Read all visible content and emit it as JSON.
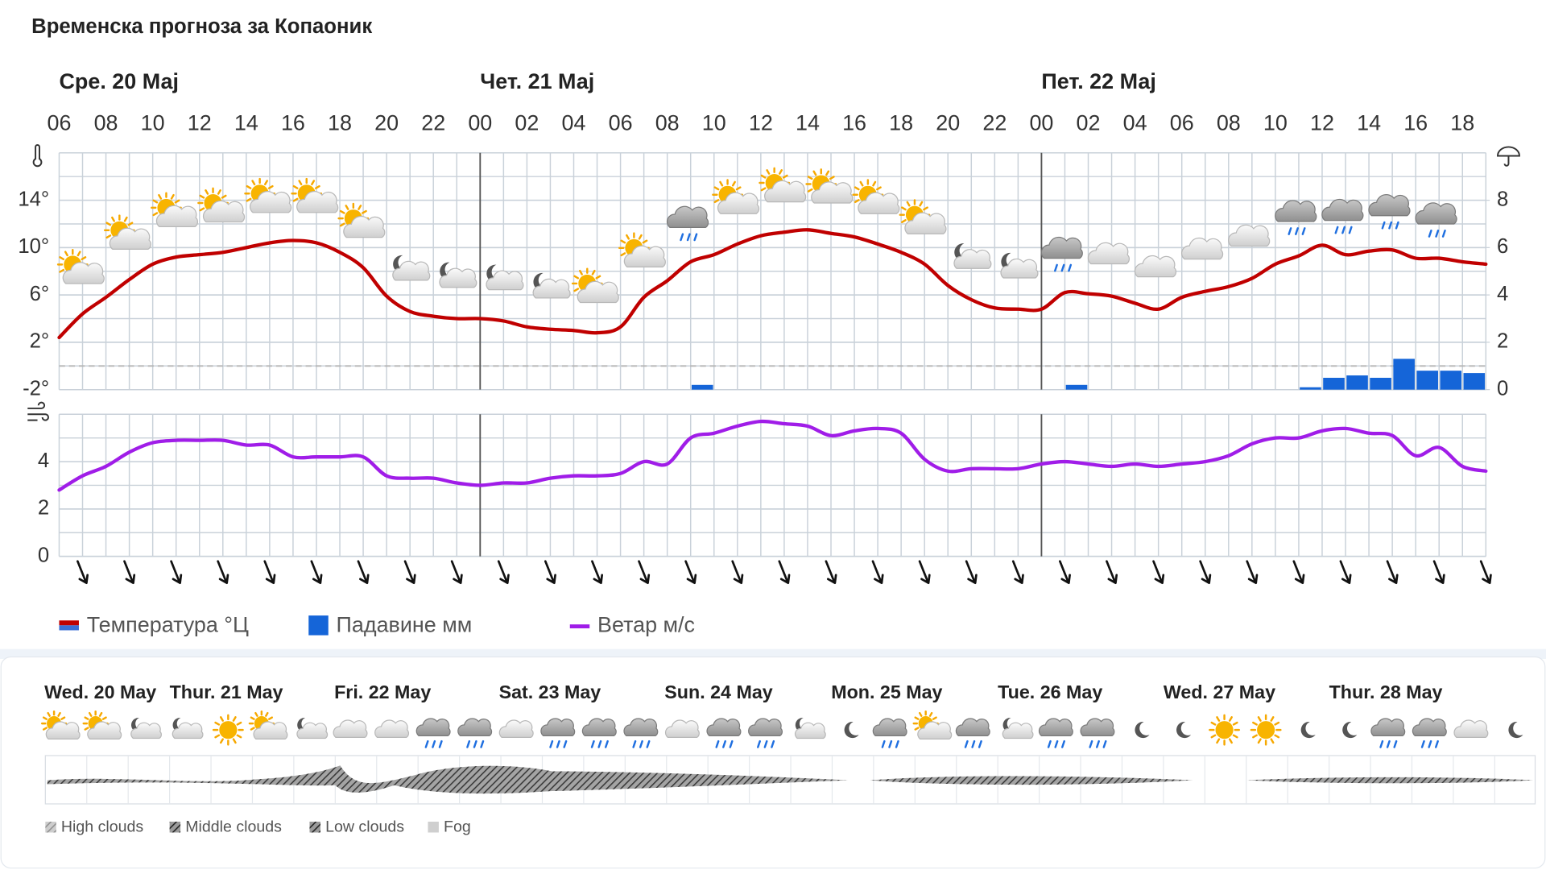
{
  "title": "Временска прогноза за Копаоник",
  "chart_data": [
    {
      "type": "line",
      "day_labels": [
        "Сре. 20 Мај",
        "Чет. 21 Мај",
        "Пет. 22 Мај"
      ],
      "categories": [
        "06",
        null,
        "08",
        null,
        "10",
        null,
        "12",
        null,
        "14",
        null,
        "16",
        null,
        "18",
        null,
        "20",
        null,
        "22",
        null,
        "00",
        null,
        "02",
        null,
        "04",
        null,
        "06",
        null,
        "08",
        null,
        "10",
        null,
        "12",
        null,
        "14",
        null,
        "16",
        null,
        "18",
        null,
        "20",
        null,
        "22",
        null,
        "00",
        null,
        "02",
        null,
        "04",
        null,
        "06",
        null,
        "08",
        null,
        "10",
        null,
        "12",
        null,
        "14",
        null,
        "16",
        null,
        "18",
        null
      ],
      "series": [
        {
          "name": "Температура °Ц",
          "color": "#c00000",
          "values": [
            2.4,
            4.4,
            5.8,
            7.3,
            8.6,
            9.2,
            9.4,
            9.6,
            10.0,
            10.4,
            10.6,
            10.4,
            9.6,
            8.3,
            5.9,
            4.6,
            4.2,
            4.0,
            4.0,
            3.8,
            3.3,
            3.1,
            3.0,
            2.8,
            3.3,
            5.8,
            7.2,
            8.8,
            9.4,
            10.3,
            11.0,
            11.3,
            11.5,
            11.2,
            10.9,
            10.3,
            9.6,
            8.6,
            6.8,
            5.6,
            4.9,
            4.8,
            4.8,
            6.2,
            6.1,
            5.9,
            5.3,
            4.8,
            5.8,
            6.3,
            6.7,
            7.4,
            8.6,
            9.3,
            10.2,
            9.4,
            9.7,
            9.8,
            9.1,
            9.1,
            8.8,
            8.6
          ]
        },
        {
          "name": "Падавине мм",
          "color": "#1565d8",
          "type": "bar",
          "axis": "y2",
          "values": [
            0,
            0,
            0,
            0,
            0,
            0,
            0,
            0,
            0,
            0,
            0,
            0,
            0,
            0,
            0,
            0,
            0,
            0,
            0,
            0,
            0,
            0,
            0,
            0,
            0,
            0,
            0,
            0.2,
            0,
            0,
            0,
            0,
            0,
            0,
            0,
            0,
            0,
            0,
            0,
            0,
            0,
            0,
            0,
            0.2,
            0,
            0,
            0,
            0,
            0,
            0,
            0,
            0,
            0,
            0.1,
            0.5,
            0.6,
            0.5,
            1.3,
            0.8,
            0.8,
            0.7,
            0
          ]
        }
      ],
      "ylim": [
        -2,
        18
      ],
      "yticks": [
        {
          "value": -2,
          "label": "-2°"
        },
        {
          "value": 2,
          "label": "2°"
        },
        {
          "value": 6,
          "label": "6°"
        },
        {
          "value": 10,
          "label": "10°"
        },
        {
          "value": 14,
          "label": "14°"
        }
      ],
      "y2lim": [
        0,
        10
      ],
      "y2ticks": [
        0,
        2,
        4,
        6,
        8
      ],
      "grid": true
    },
    {
      "type": "line",
      "series": [
        {
          "name": "Ветар м/с",
          "color": "#a01de8",
          "values": [
            2.8,
            3.4,
            3.8,
            4.4,
            4.8,
            4.9,
            4.9,
            4.9,
            4.7,
            4.7,
            4.2,
            4.2,
            4.2,
            4.2,
            3.4,
            3.3,
            3.3,
            3.1,
            3.0,
            3.1,
            3.1,
            3.3,
            3.4,
            3.4,
            3.5,
            4.0,
            3.9,
            5.0,
            5.2,
            5.5,
            5.7,
            5.6,
            5.5,
            5.1,
            5.3,
            5.4,
            5.2,
            4.1,
            3.6,
            3.7,
            3.7,
            3.7,
            3.9,
            4.0,
            3.9,
            3.8,
            3.9,
            3.8,
            3.9,
            4.0,
            4.25,
            4.75,
            5.0,
            5.0,
            5.3,
            5.4,
            5.2,
            5.1,
            4.25,
            4.6,
            3.8,
            3.6
          ]
        }
      ],
      "ylim": [
        0,
        6
      ],
      "yticks": [
        0,
        2,
        4
      ],
      "grid": true
    }
  ],
  "forecast_strip": {
    "days": [
      "Wed. 20 May",
      "Thur. 21 May",
      "Fri. 22 May",
      "Sat. 23 May",
      "Sun. 24 May",
      "Mon. 25 May",
      "Tue. 26 May",
      "Wed. 27 May",
      "Thur. 28 May"
    ],
    "cloud_legend": [
      "High clouds",
      "Middle clouds",
      "Low clouds",
      "Fog"
    ]
  }
}
